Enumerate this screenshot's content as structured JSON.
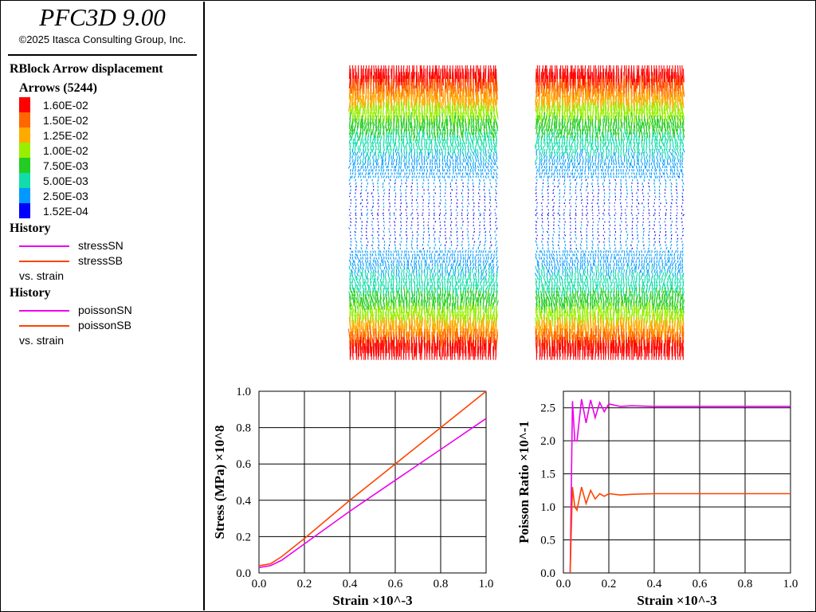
{
  "app": {
    "title": "PFC3D 9.00",
    "copyright": "©2025 Itasca Consulting Group, Inc."
  },
  "legend": {
    "plot_title": "RBlock Arrow displacement",
    "arrows_title": "Arrows (5244)",
    "items": [
      {
        "label": "1.60E-02",
        "color": "#ff0000"
      },
      {
        "label": "1.50E-02",
        "color": "#ff6600"
      },
      {
        "label": "1.25E-02",
        "color": "#ffaa00"
      },
      {
        "label": "1.00E-02",
        "color": "#99ee00"
      },
      {
        "label": "7.50E-03",
        "color": "#22cc22"
      },
      {
        "label": "5.00E-03",
        "color": "#11ddaa"
      },
      {
        "label": "2.50E-03",
        "color": "#0099ff"
      },
      {
        "label": "1.52E-04",
        "color": "#0000ff"
      }
    ]
  },
  "histories": [
    {
      "title": "History",
      "items": [
        {
          "label": "stressSN",
          "color": "#ee00ee"
        },
        {
          "label": "stressSB",
          "color": "#ff4400"
        }
      ],
      "vs": "vs. strain"
    },
    {
      "title": "History",
      "items": [
        {
          "label": "poissonSN",
          "color": "#ee00ee"
        },
        {
          "label": "poissonSB",
          "color": "#ff4400"
        }
      ],
      "vs": "vs. strain"
    }
  ],
  "chart_data": [
    {
      "type": "line",
      "ylabel": "Stress (MPa) ×10^8",
      "xlabel": "Strain ×10^-3",
      "xlim": [
        0,
        1.0
      ],
      "ylim": [
        0,
        1.0
      ],
      "xticks": [
        "0.0",
        "0.2",
        "0.4",
        "0.6",
        "0.8",
        "1.0"
      ],
      "yticks": [
        "0.0",
        "0.2",
        "0.4",
        "0.6",
        "0.8",
        "1.0"
      ],
      "grid": true,
      "series": [
        {
          "name": "stressSN",
          "color": "#ee00ee",
          "x": [
            0,
            0.05,
            0.1,
            0.2,
            0.4,
            0.6,
            0.8,
            1.0
          ],
          "y": [
            0.03,
            0.04,
            0.07,
            0.16,
            0.34,
            0.51,
            0.68,
            0.85
          ]
        },
        {
          "name": "stressSB",
          "color": "#ff4400",
          "x": [
            0,
            0.05,
            0.1,
            0.2,
            0.4,
            0.6,
            0.8,
            1.0
          ],
          "y": [
            0.04,
            0.05,
            0.09,
            0.19,
            0.4,
            0.6,
            0.8,
            1.0
          ]
        }
      ]
    },
    {
      "type": "line",
      "ylabel": "Poisson Ratio ×10^-1",
      "xlabel": "Strain ×10^-3",
      "xlim": [
        0,
        1.0
      ],
      "ylim": [
        0,
        2.75
      ],
      "xticks": [
        "0.0",
        "0.2",
        "0.4",
        "0.6",
        "0.8",
        "1.0"
      ],
      "yticks": [
        "0.0",
        "0.5",
        "1.0",
        "1.5",
        "2.0",
        "2.5"
      ],
      "grid": true,
      "series": [
        {
          "name": "poissonSN",
          "color": "#ee00ee",
          "x": [
            0.03,
            0.04,
            0.05,
            0.06,
            0.08,
            0.1,
            0.12,
            0.14,
            0.16,
            0.18,
            0.2,
            0.25,
            0.3,
            0.4,
            0.5,
            0.6,
            0.8,
            1.0
          ],
          "y": [
            0.0,
            2.6,
            2.0,
            2.0,
            2.63,
            2.27,
            2.62,
            2.35,
            2.58,
            2.44,
            2.56,
            2.52,
            2.53,
            2.52,
            2.52,
            2.52,
            2.52,
            2.52
          ]
        },
        {
          "name": "poissonSB",
          "color": "#ff4400",
          "x": [
            0.03,
            0.04,
            0.05,
            0.06,
            0.08,
            0.1,
            0.12,
            0.14,
            0.16,
            0.18,
            0.2,
            0.25,
            0.3,
            0.4,
            0.5,
            0.6,
            0.8,
            1.0
          ],
          "y": [
            0.0,
            1.3,
            1.0,
            0.95,
            1.3,
            1.05,
            1.25,
            1.12,
            1.2,
            1.16,
            1.2,
            1.18,
            1.19,
            1.2,
            1.2,
            1.2,
            1.2,
            1.2
          ]
        }
      ]
    }
  ]
}
